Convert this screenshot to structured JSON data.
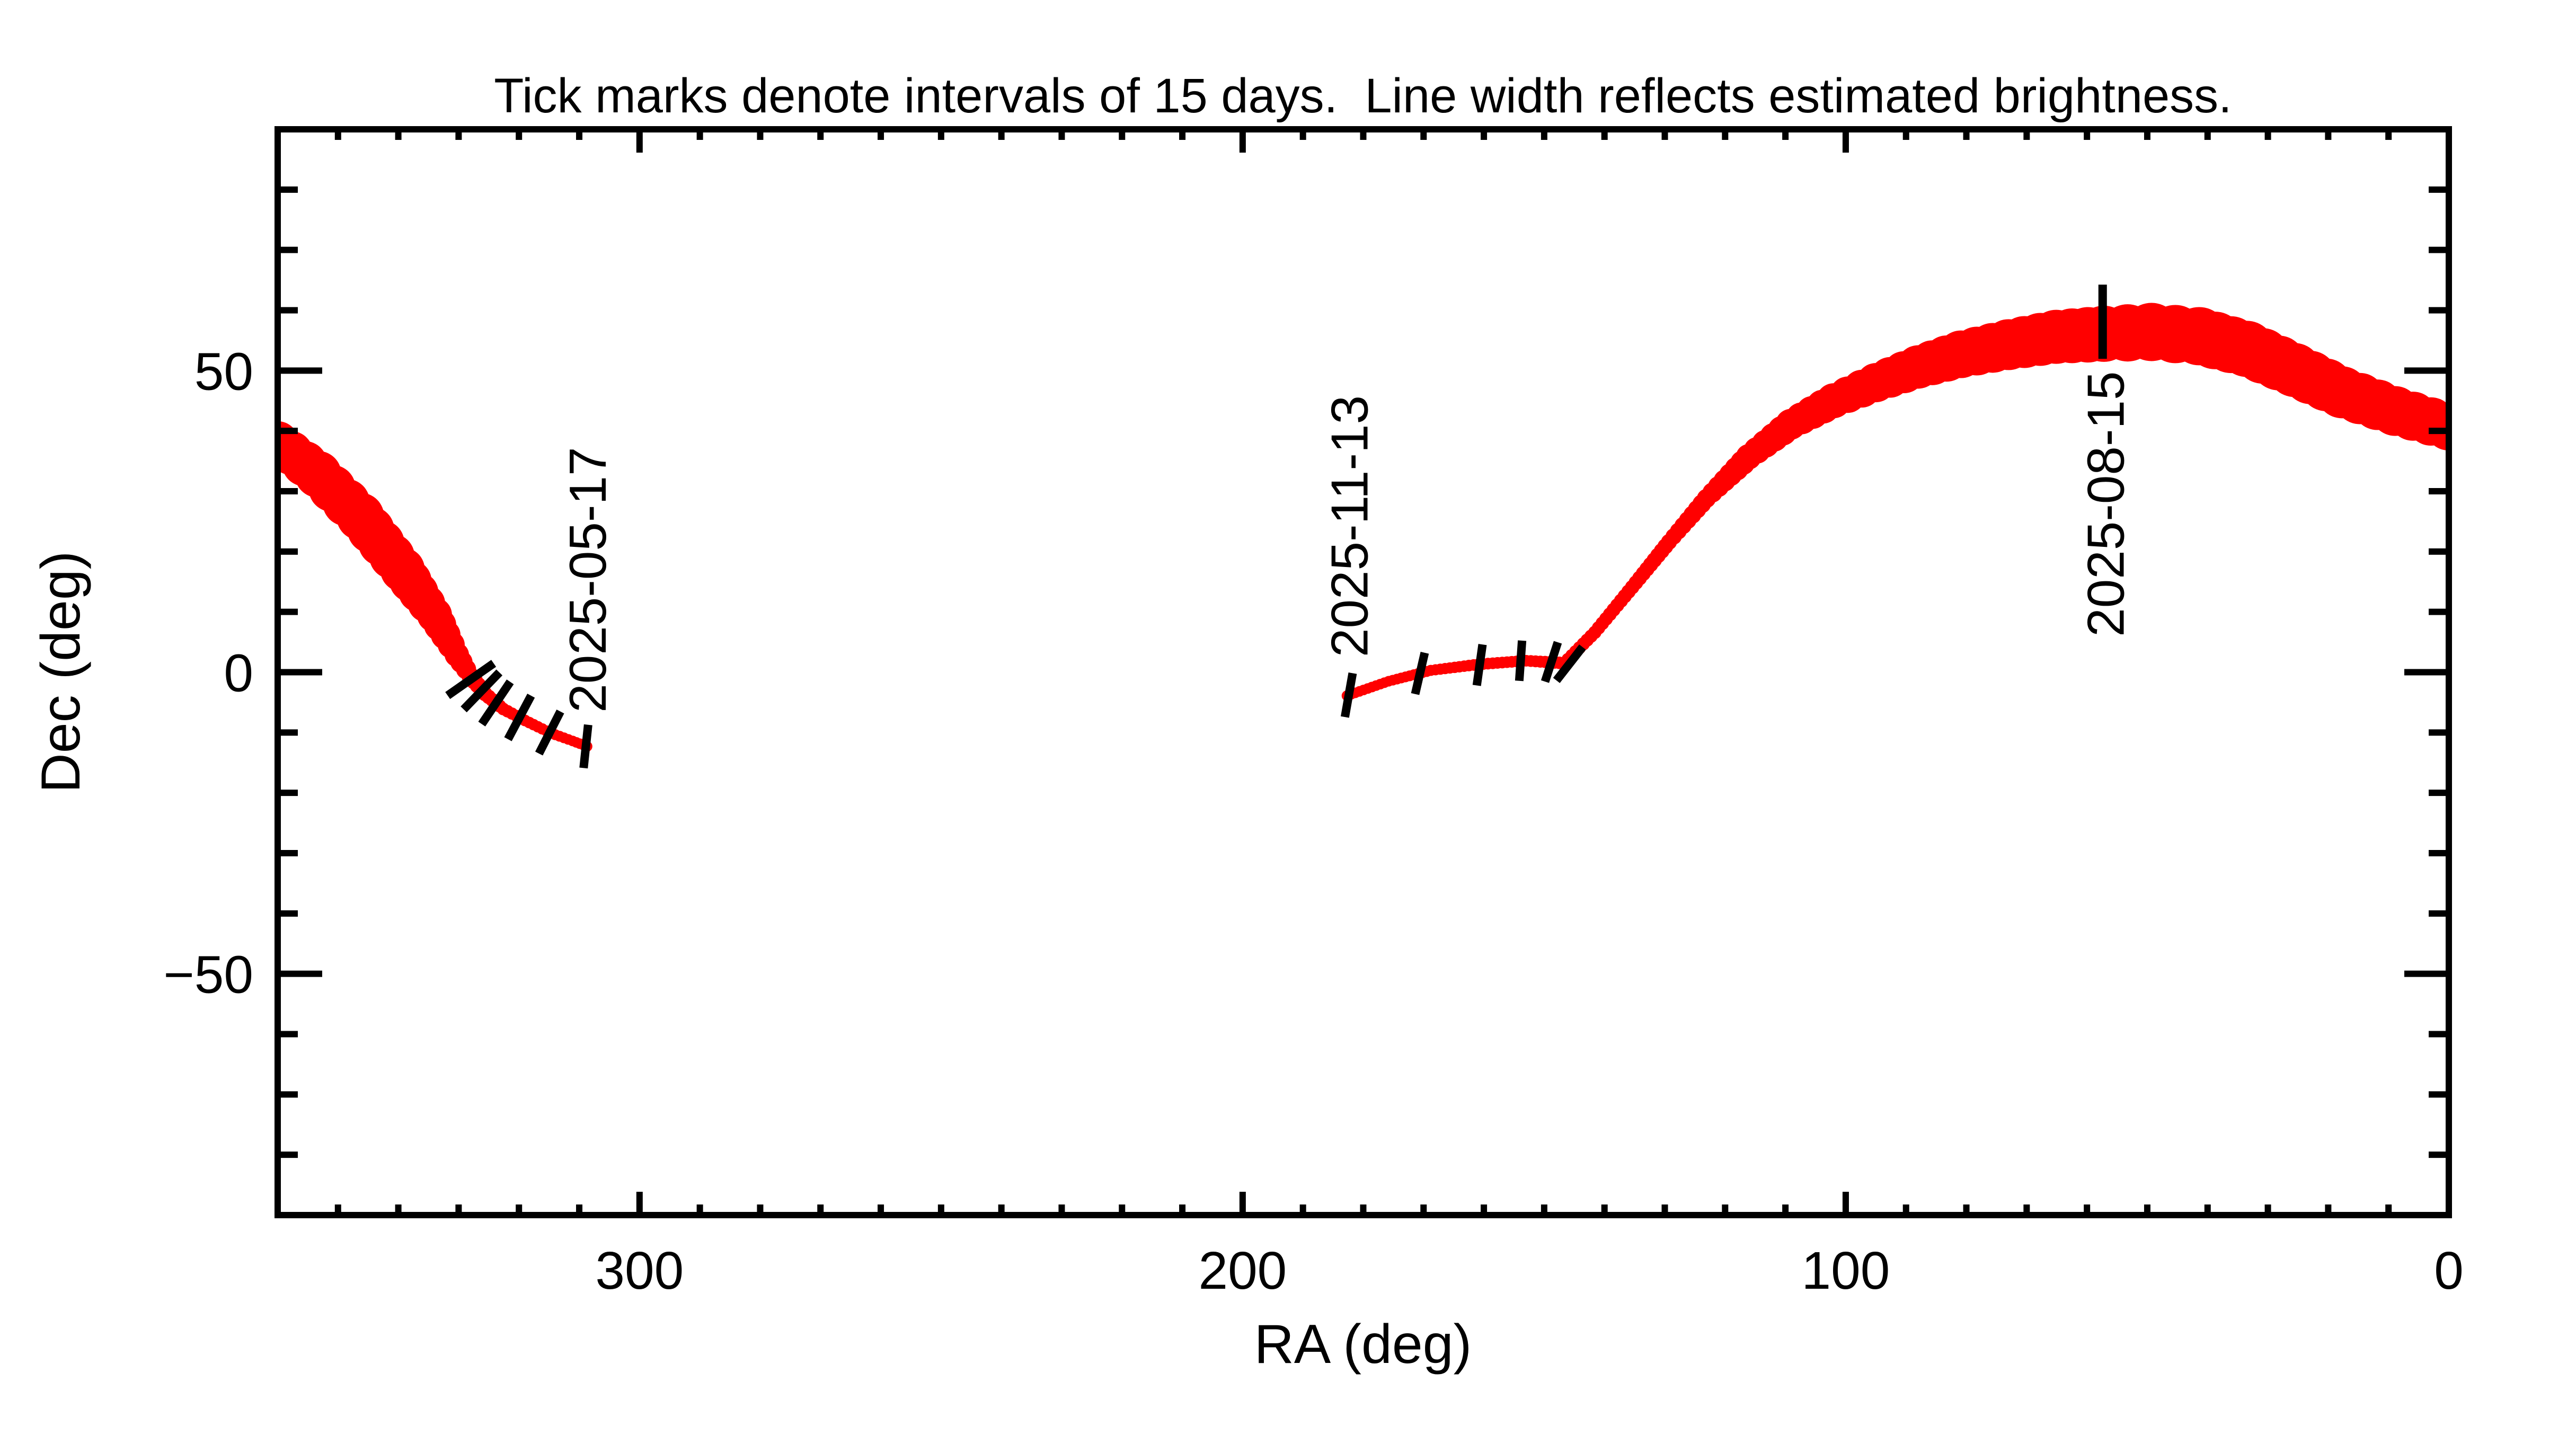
{
  "colors": {
    "track": "#ff0000",
    "axis": "#000000",
    "background": "#ffffff"
  },
  "chart_data": {
    "type": "line",
    "title": "Tick marks denote intervals of 15 days.  Line width reflects estimated brightness.",
    "xlabel": "RA (deg)",
    "ylabel": "Dec (deg)",
    "xlim": [
      360,
      0
    ],
    "ylim": [
      -90,
      90
    ],
    "grid": false,
    "legend": "none",
    "x_major_ticks": [
      {
        "value": 300,
        "label": "300"
      },
      {
        "value": 200,
        "label": "200"
      },
      {
        "value": 100,
        "label": "100"
      },
      {
        "value": 0,
        "label": "0"
      }
    ],
    "y_major_ticks": [
      {
        "value": 50,
        "label": "50"
      },
      {
        "value": 0,
        "label": "0"
      },
      {
        "value": -50,
        "label": "−50"
      }
    ],
    "minor_tick_step_deg": 10,
    "series": [
      {
        "name": "track-segment-spring",
        "points": [
          {
            "ra": 360.0,
            "dec": 38.1,
            "r": 3.51
          },
          {
            "ra": 353.3,
            "dec": 32.8,
            "r": 3.87
          },
          {
            "ra": 346.3,
            "dec": 25.8,
            "r": 3.95
          },
          {
            "ra": 339.3,
            "dec": 17.0,
            "r": 3.69
          },
          {
            "ra": 334.0,
            "dec": 9.5,
            "r": 2.9
          },
          {
            "ra": 330.3,
            "dec": 2.9,
            "r": 2.02
          },
          {
            "ra": 328.0,
            "dec": -0.7,
            "r": 1.49
          },
          {
            "ra": 325.6,
            "dec": -3.6,
            "r": 1.23
          },
          {
            "ra": 322.6,
            "dec": -6.1,
            "r": 1.05
          },
          {
            "ra": 319.0,
            "dec": -8.0,
            "r": 0.97
          },
          {
            "ra": 314.7,
            "dec": -10.1,
            "r": 0.92
          },
          {
            "ra": 311.1,
            "dec": -11.4,
            "r": 0.88
          },
          {
            "ra": 308.7,
            "dec": -12.3,
            "r": 0.88
          }
        ]
      },
      {
        "name": "track-segment-autumn",
        "points": [
          {
            "ra": 182.7,
            "dec": -3.9,
            "r": 0.88
          },
          {
            "ra": 175.8,
            "dec": -1.5,
            "r": 0.88
          },
          {
            "ra": 168.8,
            "dec": 0.3,
            "r": 0.92
          },
          {
            "ra": 160.9,
            "dec": 1.3,
            "r": 0.97
          },
          {
            "ra": 153.0,
            "dec": 1.9,
            "r": 0.97
          },
          {
            "ra": 146.7,
            "dec": 1.5,
            "r": 1.05
          }
        ]
      },
      {
        "name": "track-segment-summer-arc",
        "points": [
          {
            "ra": 146.7,
            "dec": 1.5,
            "r": 1.05
          },
          {
            "ra": 141.6,
            "dec": 6.6,
            "r": 1.1
          },
          {
            "ra": 135.4,
            "dec": 14.1,
            "r": 1.19
          },
          {
            "ra": 129.3,
            "dec": 21.6,
            "r": 1.32
          },
          {
            "ra": 123.1,
            "dec": 28.8,
            "r": 1.58
          },
          {
            "ra": 116.1,
            "dec": 35.7,
            "r": 2.11
          },
          {
            "ra": 109.1,
            "dec": 41.1,
            "r": 2.55
          },
          {
            "ra": 102.0,
            "dec": 45.0,
            "r": 2.9
          },
          {
            "ra": 95.0,
            "dec": 48.0,
            "r": 3.25
          },
          {
            "ra": 88.0,
            "dec": 50.6,
            "r": 3.6
          },
          {
            "ra": 80.9,
            "dec": 52.7,
            "r": 3.95
          },
          {
            "ra": 73.0,
            "dec": 54.3,
            "r": 4.22
          },
          {
            "ra": 65.1,
            "dec": 55.6,
            "r": 4.48
          },
          {
            "ra": 57.2,
            "dec": 56.1,
            "r": 4.66
          },
          {
            "ra": 49.3,
            "dec": 56.4,
            "r": 4.83
          },
          {
            "ra": 41.4,
            "dec": 55.7,
            "r": 4.83
          },
          {
            "ra": 33.5,
            "dec": 53.6,
            "r": 4.66
          },
          {
            "ra": 25.6,
            "dec": 50.1,
            "r": 4.48
          },
          {
            "ra": 17.7,
            "dec": 46.4,
            "r": 4.31
          },
          {
            "ra": 8.9,
            "dec": 43.3,
            "r": 4.13
          },
          {
            "ra": 0.0,
            "dec": 40.7,
            "r": 3.95
          }
        ]
      }
    ],
    "interval_ticks": [
      {
        "ra": 328.0,
        "dec": -1.2,
        "len": 106,
        "rot": 55
      },
      {
        "ra": 326.2,
        "dec": -3.1,
        "len": 97,
        "rot": 44
      },
      {
        "ra": 323.8,
        "dec": -5.1,
        "len": 96,
        "rot": 34
      },
      {
        "ra": 319.9,
        "dec": -7.5,
        "len": 93,
        "rot": 28
      },
      {
        "ra": 314.9,
        "dec": -10.0,
        "len": 89,
        "rot": 27
      },
      {
        "ra": 308.9,
        "dec": -12.3,
        "len": 82,
        "rot": 6
      },
      {
        "ra": 182.4,
        "dec": -3.8,
        "len": 84,
        "rot": 10
      },
      {
        "ra": 170.6,
        "dec": -0.2,
        "len": 80,
        "rot": 13
      },
      {
        "ra": 160.7,
        "dec": 1.2,
        "len": 78,
        "rot": 8
      },
      {
        "ra": 153.9,
        "dec": 1.9,
        "len": 76,
        "rot": 4
      },
      {
        "ra": 148.8,
        "dec": 1.7,
        "len": 78,
        "rot": 18
      },
      {
        "ra": 145.8,
        "dec": 1.4,
        "len": 80,
        "rot": 38
      },
      {
        "ra": 57.4,
        "dec": 58.1,
        "len": 140,
        "rot": 0
      }
    ],
    "date_labels": [
      {
        "text": "2025-05-17",
        "ra": 305.6,
        "dec": -6.7,
        "anchor": "start"
      },
      {
        "text": "2025-11-13",
        "ra": 179.3,
        "dec": 2.5,
        "anchor": "start"
      },
      {
        "text": "2025-08-15",
        "ra": 53.9,
        "dec": 49.9,
        "anchor": "end"
      }
    ]
  }
}
